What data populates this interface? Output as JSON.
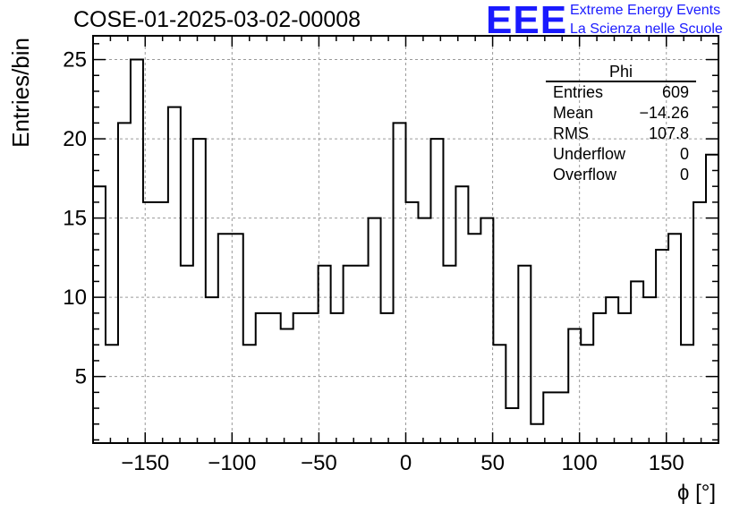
{
  "header": {
    "title": "COSE-01-2025-03-02-00008",
    "logo_mark": "EEE",
    "logo_line1": "Extreme Energy Events",
    "logo_line2": "La Scienza nelle Scuole"
  },
  "stats_box": {
    "name": "Phi",
    "rows": [
      {
        "label": "Entries",
        "value": "609"
      },
      {
        "label": "Mean",
        "value": "−14.26"
      },
      {
        "label": "RMS",
        "value": "107.8"
      },
      {
        "label": "Underflow",
        "value": "0"
      },
      {
        "label": "Overflow",
        "value": "0"
      }
    ]
  },
  "chart_data": {
    "type": "histogram",
    "title": "COSE-01-2025-03-02-00008",
    "xlabel": "ϕ [°]",
    "ylabel": "Entries/bin",
    "xlim": [
      -180,
      180
    ],
    "ylim": [
      0.8,
      26.5
    ],
    "grid": true,
    "bin_width": 7.2,
    "x_ticks": [
      -150,
      -100,
      -50,
      0,
      50,
      100,
      150
    ],
    "x_tick_labels": [
      "−150",
      "−100",
      "−50",
      "0",
      "50",
      "100",
      "150"
    ],
    "y_ticks": [
      5,
      10,
      15,
      20,
      25
    ],
    "y_tick_labels": [
      "5",
      "10",
      "15",
      "20",
      "25"
    ],
    "values": [
      17,
      7,
      21,
      25,
      16,
      16,
      22,
      12,
      20,
      10,
      14,
      14,
      7,
      9,
      9,
      8,
      9,
      9,
      12,
      9,
      12,
      12,
      15,
      9,
      21,
      16,
      15,
      20,
      12,
      17,
      14,
      15,
      7,
      3,
      12,
      2,
      4,
      4,
      8,
      7,
      9,
      10,
      9,
      11,
      10,
      13,
      14,
      7,
      16,
      19
    ]
  }
}
